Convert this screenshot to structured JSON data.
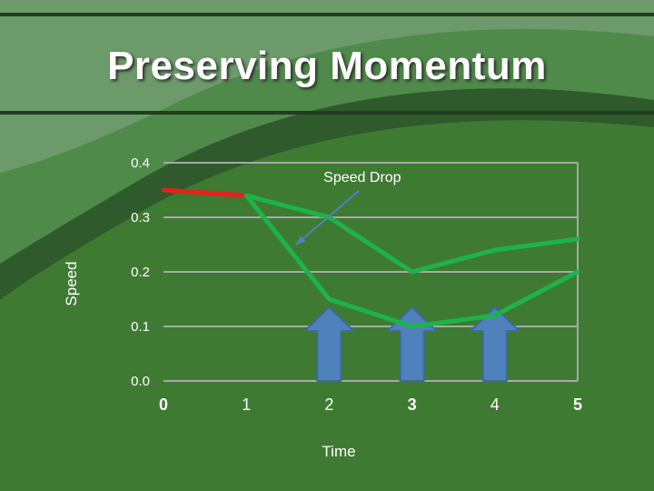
{
  "slide": {
    "title": "Preserving Momentum"
  },
  "colors": {
    "background": "#3f7a32",
    "band_light": "#6c9a6a",
    "band_dark": "#2e5a2c",
    "grid": "#a8a8a8",
    "line_green": "#1db34a",
    "line_red": "#e8201c",
    "arrow_fill": "#4f81bd",
    "arrow_stroke": "#3d6a9e",
    "annotation_arrow": "#4f81bd"
  },
  "chart_data": {
    "type": "line",
    "title": "",
    "xlabel": "Time",
    "ylabel": "Speed",
    "xlim": [
      0,
      5
    ],
    "ylim": [
      0,
      0.4
    ],
    "x_ticks": [
      "0",
      "1",
      "2",
      "3",
      "4",
      "5"
    ],
    "y_ticks": [
      "0.0",
      "0.1",
      "0.2",
      "0.3",
      "0.4"
    ],
    "grid": true,
    "legend": "none",
    "series": [
      {
        "color": "#e8201c",
        "x": [
          0,
          1
        ],
        "y": [
          0.35,
          0.34
        ]
      },
      {
        "color": "#1db34a",
        "x": [
          1,
          2,
          3,
          4,
          5
        ],
        "y": [
          0.34,
          0.3,
          0.2,
          0.24,
          0.26
        ]
      },
      {
        "color": "#1db34a",
        "x": [
          1,
          2,
          3,
          4,
          5
        ],
        "y": [
          0.34,
          0.15,
          0.1,
          0.12,
          0.2
        ]
      }
    ],
    "annotations": [
      {
        "text": "Speed Drop",
        "x": 2.4,
        "y": 0.365,
        "arrow_to": [
          1.6,
          0.25
        ]
      }
    ],
    "push_arrows": [
      {
        "x": 2,
        "y_top": 0.135,
        "y_bottom": 0.0
      },
      {
        "x": 3,
        "y_top": 0.135,
        "y_bottom": 0.0
      },
      {
        "x": 4,
        "y_top": 0.135,
        "y_bottom": 0.0
      }
    ]
  }
}
